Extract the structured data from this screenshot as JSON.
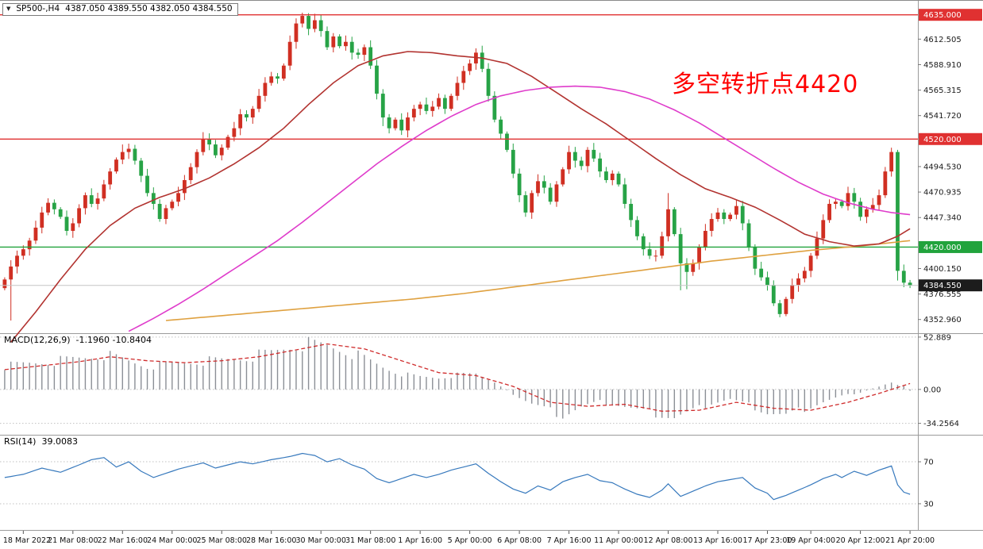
{
  "symbol_box": {
    "icon": "▼",
    "symbol": "SP500-,H4",
    "ohlc": "4387.050 4389.550 4382.050 4384.550"
  },
  "annotation": {
    "text": "多空转折点4420",
    "color": "#ff0000"
  },
  "chart_data": {
    "type": "candlestick",
    "symbol": "SP500-",
    "timeframe": "H4",
    "price_panel": {
      "axis_range": [
        4341,
        4648
      ],
      "axis_labels": [
        "4612.505",
        "4588.910",
        "4565.315",
        "4541.720",
        "4494.530",
        "4470.935",
        "4447.340",
        "4400.150",
        "4376.555",
        "4352.960"
      ],
      "hlines": [
        {
          "value": 4635.0,
          "color": "#e03131",
          "badge_text": "4635.000"
        },
        {
          "value": 4520.0,
          "color": "#e03131",
          "badge_text": "4520.000"
        },
        {
          "value": 4420.0,
          "color": "#21a33c",
          "badge_text": "4420.000"
        }
      ],
      "current_price": {
        "value": 4384.55,
        "badge_text": "4384.550",
        "badge_bg": "#1c1c1c",
        "line_color": "#c6c6c6"
      },
      "candles": {
        "first_open": 4382,
        "up_color": "#d02f22",
        "down_color": "#27a346",
        "closes": [
          4390,
          4402,
          4412,
          4418,
          4426,
          4438,
          4452,
          4461,
          4455,
          4448,
          4435,
          4442,
          4456,
          4468,
          4460,
          4465,
          4478,
          4490,
          4501,
          4508,
          4511,
          4500,
          4486,
          4470,
          4460,
          4446,
          4456,
          4462,
          4470,
          4482,
          4494,
          4508,
          4520,
          4515,
          4505,
          4512,
          4522,
          4530,
          4543,
          4540,
          4548,
          4560,
          4572,
          4578,
          4576,
          4588,
          4610,
          4627,
          4634,
          4622,
          4630,
          4620,
          4605,
          4615,
          4606,
          4610,
          4600,
          4598,
          4605,
          4588,
          4562,
          4540,
          4530,
          4538,
          4528,
          4540,
          4548,
          4552,
          4546,
          4550,
          4558,
          4548,
          4560,
          4572,
          4583,
          4590,
          4600,
          4585,
          4560,
          4538,
          4525,
          4510,
          4488,
          4468,
          4452,
          4470,
          4481,
          4475,
          4462,
          4478,
          4492,
          4508,
          4500,
          4495,
          4510,
          4502,
          4490,
          4482,
          4488,
          4478,
          4460,
          4445,
          4430,
          4418,
          4412,
          4412,
          4430,
          4455,
          4432,
          4405,
          4397,
          4405,
          4420,
          4435,
          4446,
          4452,
          4446,
          4450,
          4458,
          4442,
          4420,
          4400,
          4392,
          4385,
          4368,
          4358,
          4372,
          4385,
          4391,
          4398,
          4412,
          4428,
          4445,
          4460,
          4462,
          4458,
          4470,
          4462,
          4448,
          4455,
          4459,
          4468,
          4490,
          4508,
          4398,
          4387.05,
          4384.55
        ],
        "wick_high_overrides": {
          "19": 4515,
          "48": 4637,
          "50": 4636,
          "76": 4604,
          "107": 4470,
          "143": 4512,
          "146": 4389.55
        },
        "wick_low_overrides": {
          "1": 4352,
          "61": 4532,
          "84": 4448,
          "109": 4380,
          "110": 4381,
          "125": 4355,
          "144": 4389,
          "146": 4382.05
        }
      },
      "moving_averages": [
        {
          "name": "ma-slow-orange",
          "color": "#dfa140",
          "points": [
            [
              26,
              4352
            ],
            [
              34,
              4356
            ],
            [
              42,
              4360
            ],
            [
              50,
              4364
            ],
            [
              58,
              4368
            ],
            [
              66,
              4372
            ],
            [
              74,
              4377
            ],
            [
              82,
              4383
            ],
            [
              90,
              4389
            ],
            [
              98,
              4395
            ],
            [
              106,
              4401
            ],
            [
              114,
              4407
            ],
            [
              122,
              4412
            ],
            [
              130,
              4417
            ],
            [
              138,
              4421
            ],
            [
              146,
              4426
            ]
          ]
        },
        {
          "name": "ma-fast-red",
          "color": "#b23330",
          "points": [
            [
              1,
              4332
            ],
            [
              5,
              4360
            ],
            [
              9,
              4390
            ],
            [
              13,
              4418
            ],
            [
              17,
              4440
            ],
            [
              21,
              4456
            ],
            [
              25,
              4466
            ],
            [
              29,
              4474
            ],
            [
              33,
              4484
            ],
            [
              37,
              4497
            ],
            [
              41,
              4512
            ],
            [
              45,
              4530
            ],
            [
              49,
              4552
            ],
            [
              53,
              4572
            ],
            [
              57,
              4588
            ],
            [
              61,
              4597
            ],
            [
              65,
              4601
            ],
            [
              69,
              4600
            ],
            [
              73,
              4597
            ],
            [
              77,
              4595
            ],
            [
              81,
              4590
            ],
            [
              85,
              4578
            ],
            [
              89,
              4563
            ],
            [
              93,
              4548
            ],
            [
              97,
              4534
            ],
            [
              101,
              4518
            ],
            [
              105,
              4502
            ],
            [
              109,
              4487
            ],
            [
              113,
              4474
            ],
            [
              117,
              4466
            ],
            [
              121,
              4457
            ],
            [
              125,
              4445
            ],
            [
              129,
              4432
            ],
            [
              133,
              4425
            ],
            [
              137,
              4421
            ],
            [
              141,
              4423
            ],
            [
              144,
              4430
            ],
            [
              146,
              4437
            ]
          ]
        },
        {
          "name": "ma-mid-magenta",
          "color": "#df3ccb",
          "points": [
            [
              20,
              4342
            ],
            [
              24,
              4354
            ],
            [
              28,
              4367
            ],
            [
              32,
              4381
            ],
            [
              36,
              4396
            ],
            [
              40,
              4411
            ],
            [
              44,
              4426
            ],
            [
              48,
              4443
            ],
            [
              52,
              4461
            ],
            [
              56,
              4479
            ],
            [
              60,
              4497
            ],
            [
              64,
              4513
            ],
            [
              68,
              4528
            ],
            [
              72,
              4541
            ],
            [
              76,
              4552
            ],
            [
              80,
              4560
            ],
            [
              84,
              4565
            ],
            [
              88,
              4568
            ],
            [
              92,
              4569
            ],
            [
              96,
              4568
            ],
            [
              100,
              4564
            ],
            [
              104,
              4557
            ],
            [
              108,
              4547
            ],
            [
              112,
              4535
            ],
            [
              116,
              4521
            ],
            [
              120,
              4507
            ],
            [
              124,
              4493
            ],
            [
              128,
              4480
            ],
            [
              132,
              4469
            ],
            [
              136,
              4461
            ],
            [
              140,
              4455
            ],
            [
              143,
              4452
            ],
            [
              146,
              4450
            ]
          ]
        }
      ]
    },
    "macd_panel": {
      "label": "MACD(12,26,9)",
      "values_text": "-1.1960 -10.8404",
      "axis_range": [
        56,
        -45
      ],
      "axis_labels": [
        {
          "text": "52.889",
          "value": 52.889
        },
        {
          "text": "0.00",
          "value": 0
        },
        {
          "text": "-34.2564",
          "value": -34.2564
        }
      ],
      "histogram_color": "#8b8f96",
      "signal_color": "#cf2b2b",
      "histogram": [
        [
          0,
          24
        ],
        [
          4,
          27
        ],
        [
          8,
          29
        ],
        [
          13,
          33
        ],
        [
          16,
          36
        ],
        [
          19,
          31
        ],
        [
          23,
          24
        ],
        [
          27,
          26
        ],
        [
          31,
          29
        ],
        [
          35,
          30
        ],
        [
          39,
          33
        ],
        [
          43,
          38
        ],
        [
          46,
          44
        ],
        [
          48,
          47
        ],
        [
          52,
          45
        ],
        [
          55,
          40
        ],
        [
          58,
          32
        ],
        [
          61,
          23
        ],
        [
          64,
          16
        ],
        [
          67,
          13
        ],
        [
          70,
          12
        ],
        [
          73,
          15
        ],
        [
          76,
          16
        ],
        [
          79,
          8
        ],
        [
          82,
          -5
        ],
        [
          85,
          -15
        ],
        [
          88,
          -22
        ],
        [
          90,
          -27
        ],
        [
          93,
          -18
        ],
        [
          96,
          -13
        ],
        [
          99,
          -16
        ],
        [
          102,
          -21
        ],
        [
          105,
          -25
        ],
        [
          108,
          -29
        ],
        [
          111,
          -22
        ],
        [
          114,
          -14
        ],
        [
          117,
          -10
        ],
        [
          120,
          -16
        ],
        [
          123,
          -24
        ],
        [
          126,
          -27
        ],
        [
          129,
          -20
        ],
        [
          132,
          -13
        ],
        [
          135,
          -7
        ],
        [
          138,
          -3
        ],
        [
          141,
          3
        ],
        [
          143,
          8
        ],
        [
          145,
          3
        ],
        [
          146,
          -1.2
        ]
      ],
      "signal": [
        [
          0,
          20
        ],
        [
          6,
          24
        ],
        [
          12,
          28
        ],
        [
          17,
          33
        ],
        [
          23,
          29
        ],
        [
          29,
          27
        ],
        [
          35,
          29
        ],
        [
          41,
          33
        ],
        [
          47,
          40
        ],
        [
          52,
          46
        ],
        [
          58,
          41
        ],
        [
          64,
          29
        ],
        [
          70,
          17
        ],
        [
          76,
          14
        ],
        [
          82,
          3
        ],
        [
          88,
          -13
        ],
        [
          94,
          -17
        ],
        [
          100,
          -15
        ],
        [
          106,
          -22
        ],
        [
          112,
          -21
        ],
        [
          118,
          -13
        ],
        [
          124,
          -19
        ],
        [
          130,
          -21
        ],
        [
          136,
          -13
        ],
        [
          141,
          -4
        ],
        [
          146,
          6
        ]
      ]
    },
    "rsi_panel": {
      "label": "RSI(14)",
      "value_text": "39.0083",
      "axis_range": [
        95,
        5
      ],
      "levels": [
        {
          "text": "70",
          "value": 70
        },
        {
          "text": "30",
          "value": 30
        }
      ],
      "line_color": "#3779bd",
      "line": [
        [
          0,
          55
        ],
        [
          3,
          58
        ],
        [
          6,
          64
        ],
        [
          9,
          60
        ],
        [
          12,
          67
        ],
        [
          14,
          72
        ],
        [
          16,
          74
        ],
        [
          18,
          65
        ],
        [
          20,
          70
        ],
        [
          22,
          61
        ],
        [
          24,
          55
        ],
        [
          26,
          59
        ],
        [
          28,
          63
        ],
        [
          30,
          66
        ],
        [
          32,
          69
        ],
        [
          34,
          64
        ],
        [
          36,
          67
        ],
        [
          38,
          70
        ],
        [
          40,
          68
        ],
        [
          43,
          72
        ],
        [
          46,
          75
        ],
        [
          48,
          78
        ],
        [
          50,
          76
        ],
        [
          52,
          70
        ],
        [
          54,
          73
        ],
        [
          56,
          67
        ],
        [
          58,
          63
        ],
        [
          60,
          54
        ],
        [
          62,
          50
        ],
        [
          64,
          54
        ],
        [
          66,
          58
        ],
        [
          68,
          55
        ],
        [
          70,
          58
        ],
        [
          72,
          62
        ],
        [
          74,
          65
        ],
        [
          76,
          68
        ],
        [
          78,
          59
        ],
        [
          80,
          51
        ],
        [
          82,
          44
        ],
        [
          84,
          40
        ],
        [
          86,
          47
        ],
        [
          88,
          43
        ],
        [
          90,
          51
        ],
        [
          92,
          55
        ],
        [
          94,
          58
        ],
        [
          96,
          52
        ],
        [
          98,
          50
        ],
        [
          100,
          44
        ],
        [
          102,
          39
        ],
        [
          104,
          36
        ],
        [
          106,
          43
        ],
        [
          107,
          49
        ],
        [
          109,
          37
        ],
        [
          111,
          42
        ],
        [
          113,
          47
        ],
        [
          115,
          51
        ],
        [
          117,
          53
        ],
        [
          119,
          55
        ],
        [
          121,
          45
        ],
        [
          123,
          40
        ],
        [
          124,
          34
        ],
        [
          126,
          38
        ],
        [
          128,
          43
        ],
        [
          130,
          48
        ],
        [
          132,
          54
        ],
        [
          134,
          58
        ],
        [
          135,
          55
        ],
        [
          137,
          61
        ],
        [
          139,
          57
        ],
        [
          141,
          62
        ],
        [
          143,
          66
        ],
        [
          144,
          48
        ],
        [
          145,
          41
        ],
        [
          146,
          39
        ]
      ]
    },
    "x_axis": {
      "ticks": [
        [
          3,
          "18 Mar 2022"
        ],
        [
          11,
          "21 Mar 08:00"
        ],
        [
          19,
          "22 Mar 16:00"
        ],
        [
          27,
          "24 Mar 00:00"
        ],
        [
          35,
          "25 Mar 08:00"
        ],
        [
          43,
          "28 Mar 16:00"
        ],
        [
          51,
          "30 Mar 00:00"
        ],
        [
          59,
          "31 Mar 08:00"
        ],
        [
          67,
          "1 Apr 16:00"
        ],
        [
          75,
          "5 Apr 00:00"
        ],
        [
          83,
          "6 Apr 08:00"
        ],
        [
          91,
          "7 Apr 16:00"
        ],
        [
          99,
          "11 Apr 00:00"
        ],
        [
          107,
          "12 Apr 08:00"
        ],
        [
          115,
          "13 Apr 16:00"
        ],
        [
          123,
          "17 Apr 23:00"
        ],
        [
          130,
          "19 Apr 04:00"
        ],
        [
          138,
          "20 Apr 12:00"
        ],
        [
          146,
          "21 Apr 20:00"
        ]
      ]
    }
  }
}
